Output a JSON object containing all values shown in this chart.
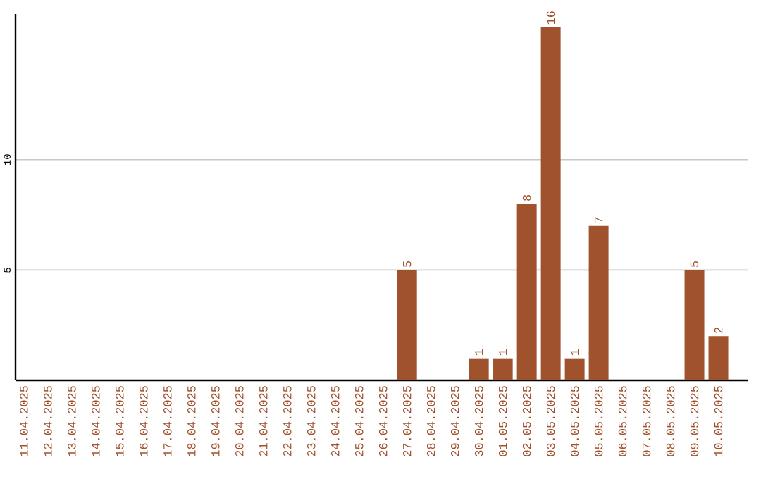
{
  "chart_data": {
    "type": "bar",
    "categories": [
      "11.04.2025",
      "12.04.2025",
      "13.04.2025",
      "14.04.2025",
      "15.04.2025",
      "16.04.2025",
      "17.04.2025",
      "18.04.2025",
      "19.04.2025",
      "20.04.2025",
      "21.04.2025",
      "22.04.2025",
      "23.04.2025",
      "24.04.2025",
      "25.04.2025",
      "26.04.2025",
      "27.04.2025",
      "28.04.2025",
      "29.04.2025",
      "30.04.2025",
      "01.05.2025",
      "02.05.2025",
      "03.05.2025",
      "04.05.2025",
      "05.05.2025",
      "06.05.2025",
      "07.05.2025",
      "08.05.2025",
      "09.05.2025",
      "10.05.2025"
    ],
    "values": [
      0,
      0,
      0,
      0,
      0,
      0,
      0,
      0,
      0,
      0,
      0,
      0,
      0,
      0,
      0,
      0,
      5,
      0,
      0,
      1,
      1,
      8,
      16,
      1,
      7,
      0,
      0,
      0,
      5,
      2
    ],
    "value_labels": [
      null,
      null,
      null,
      null,
      null,
      null,
      null,
      null,
      null,
      null,
      null,
      null,
      null,
      null,
      null,
      null,
      "5",
      null,
      null,
      "1",
      "1",
      "8",
      "16",
      "1",
      "7",
      null,
      null,
      null,
      "5",
      "2"
    ],
    "color": "#a0522d",
    "ylim": [
      0,
      16.6
    ],
    "yticks": [
      5,
      10
    ],
    "grid": "y"
  }
}
